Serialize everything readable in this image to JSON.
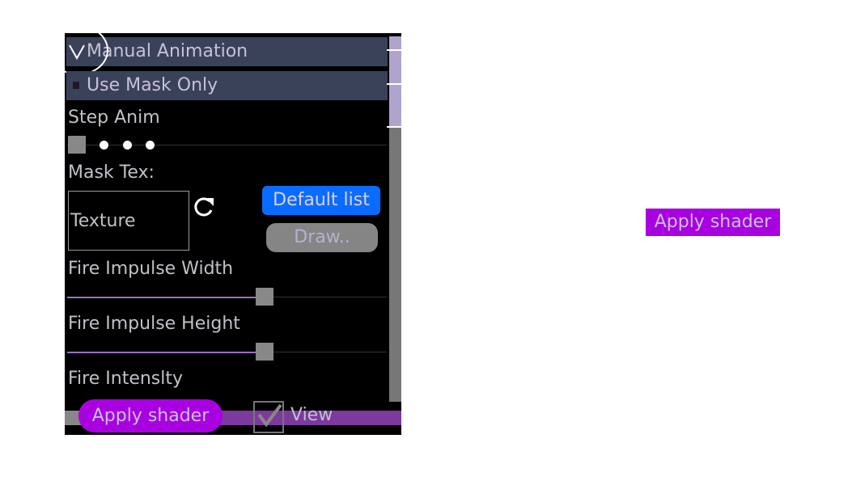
{
  "panel": {
    "manual_animation": {
      "label": "Manual Animation",
      "checked": true
    },
    "use_mask_only": {
      "label": "Use Mask Only",
      "checked": false
    },
    "step_anim": {
      "label": "Step Anim"
    },
    "mask_tex": {
      "label": "Mask Tex:",
      "texture_label": "Texture",
      "refresh_icon": "refresh-icon"
    },
    "default_list_button": "Default list",
    "draw_button": "Draw..",
    "fire_impulse_width": {
      "label": "Fire Impulse Width",
      "value_percent": 62
    },
    "fire_impulse_height": {
      "label": "Fire Impulse Height",
      "value_percent": 62
    },
    "fire_intensity": {
      "label": "Fire Intenslty"
    },
    "scroll_percent": 0
  },
  "bottom_bar": {
    "apply_shader_button": "Apply shader",
    "view_checkbox": {
      "label": "View",
      "checked": true
    }
  },
  "floating_apply_shader_button": "Apply shader",
  "colors": {
    "accent_purple": "#a800e0",
    "blue_button": "#0a6cff",
    "row_bg": "#3a425a"
  }
}
